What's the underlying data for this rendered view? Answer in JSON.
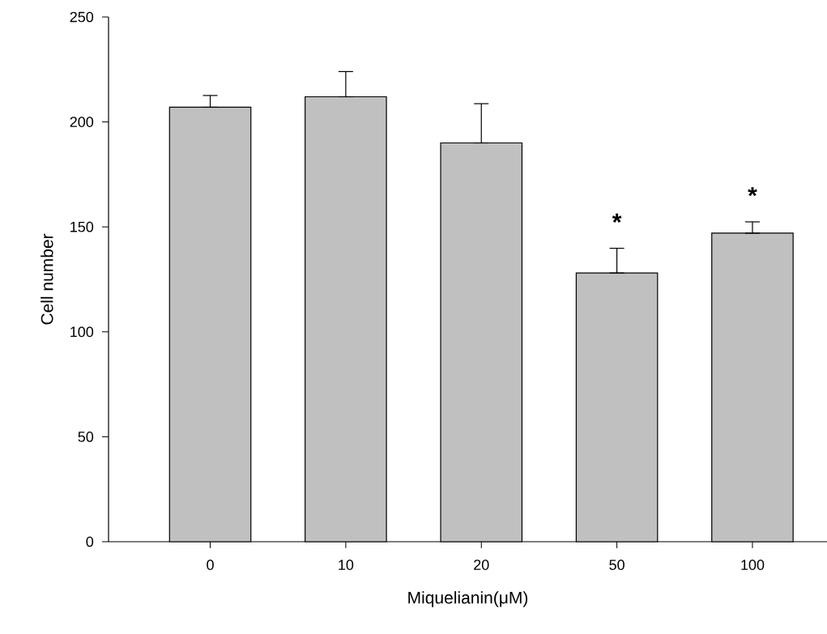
{
  "chart_data": {
    "type": "bar",
    "xlabel": "Miquelianin(μM)",
    "ylabel": "Cell number",
    "categories": [
      "0",
      "10",
      "20",
      "50",
      "100"
    ],
    "values": [
      207,
      212,
      190,
      128,
      147
    ],
    "errors": [
      [
        207,
        212.6
      ],
      [
        212,
        224
      ],
      [
        190,
        208.7
      ],
      [
        128,
        139.8
      ],
      [
        147,
        152.4
      ]
    ],
    "color": "#c0c0c0",
    "ylim": [
      0,
      250
    ],
    "yticks": [
      0,
      50,
      100,
      150,
      200,
      250
    ],
    "grid": false,
    "annotations": [
      {
        "text": "*",
        "x": "50",
        "y": 139.8
      },
      {
        "text": "*",
        "x": "100",
        "y": 152.4
      }
    ]
  }
}
